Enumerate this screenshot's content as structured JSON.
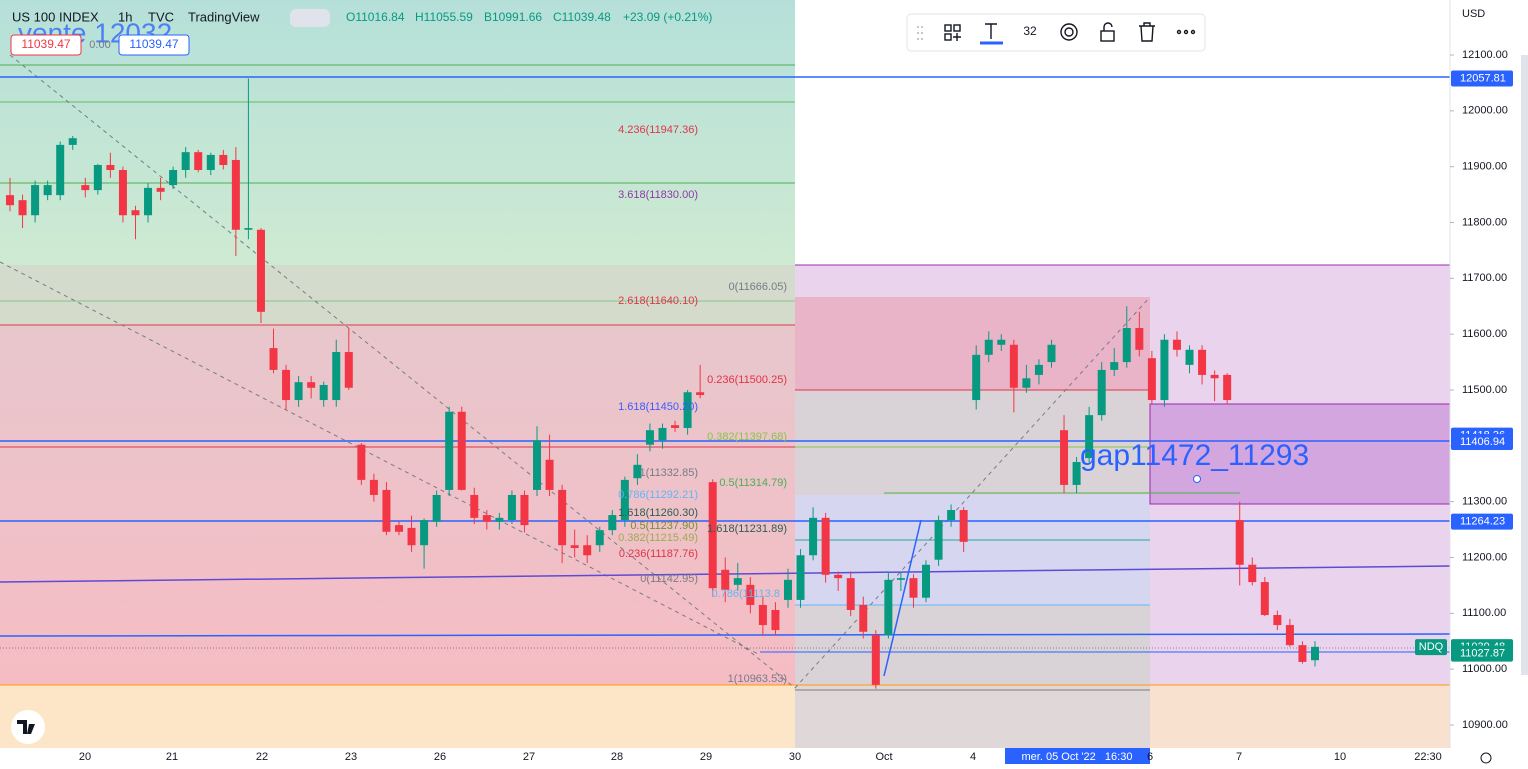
{
  "header": {
    "symbol": "US 100 INDEX",
    "interval": "1h",
    "source": "TVC",
    "platform": "TradingView",
    "open": "O11016.84",
    "high": "H11055.59",
    "low": "B10991.66",
    "close": "C11039.48",
    "change": "+23.09 (+0.21%)",
    "bid": "11039.47",
    "spread": "0.00",
    "ask": "11039.47",
    "watermark": "vente 12032"
  },
  "toolbar": {
    "size": "32"
  },
  "chart_data": {
    "type": "candlestick",
    "ylim": [
      10858.8,
      12198.5
    ],
    "currency": "USD",
    "up_color": "#089981",
    "down_color": "#f23645",
    "yticks": [
      {
        "value": 12100,
        "label": "12100.00"
      },
      {
        "value": 12000,
        "label": "12000.00"
      },
      {
        "value": 11900,
        "label": "11900.00"
      },
      {
        "value": 11800,
        "label": "11800.00"
      },
      {
        "value": 11700,
        "label": "11700.00"
      },
      {
        "value": 11600,
        "label": "11600.00"
      },
      {
        "value": 11500,
        "label": "11500.00"
      },
      {
        "value": 11400,
        "label": "11400.00"
      },
      {
        "value": 11300,
        "label": "11300.00"
      },
      {
        "value": 11200,
        "label": "11200.00"
      },
      {
        "value": 11100,
        "label": "11100.00"
      },
      {
        "value": 11000,
        "label": "11000.00"
      },
      {
        "value": 10900,
        "label": "10900.00"
      }
    ],
    "price_tags": [
      {
        "value": 12057.81,
        "label": "12057.81",
        "color": "#2962ff"
      },
      {
        "value": 11418.36,
        "label": "11418.36",
        "color": "#2962ff"
      },
      {
        "value": 11406.94,
        "label": "11406.94",
        "color": "#2962ff"
      },
      {
        "value": 11264.23,
        "label": "11264.23",
        "color": "#2962ff"
      },
      {
        "value": 11039.48,
        "label": "11039.48",
        "color": "#089981"
      },
      {
        "value": 11027.87,
        "label": "11027.87",
        "color": "#089981"
      }
    ],
    "symbol_tag": "NDQ",
    "time_labels": [
      "20",
      "21",
      "22",
      "23",
      "26",
      "27",
      "28",
      "29",
      "30",
      "Oct",
      "4",
      "mer. 05 Oct '22   16:30",
      "6",
      "7",
      "10",
      "22:30"
    ],
    "fib_labels": [
      {
        "text": "4.236(11947.36)",
        "color": "#e0344a"
      },
      {
        "text": "3.618(11830.00)",
        "color": "#8e3aa8"
      },
      {
        "text": "2.618(11640.10)",
        "color": "#e0344a"
      },
      {
        "text": "0(11666.05)",
        "color": "#787b86"
      },
      {
        "text": "0.236(11500.25)",
        "color": "#e0344a"
      },
      {
        "text": "1.618(11450.20)",
        "color": "#3d5afe"
      },
      {
        "text": "0.382(11397.68)",
        "color": "#8bc34a"
      },
      {
        "text": "1(11332.85)",
        "color": "#787b86"
      },
      {
        "text": "0.5(11314.79)",
        "color": "#4caf50"
      },
      {
        "text": "0.786(11292.21)",
        "color": "#64b5f6"
      },
      {
        "text": "1.618(11260.30)",
        "color": "#2e5e4e"
      },
      {
        "text": "0.5(11237.90)",
        "color": "#7a8f2a"
      },
      {
        "text": "1.618(11231.89)",
        "color": "#2e5e4e"
      },
      {
        "text": "0.382(11215.49)",
        "color": "#9cad4e"
      },
      {
        "text": "0.236(11187.76)",
        "color": "#e0344a"
      },
      {
        "text": "0(11142.95)",
        "color": "#787b86"
      },
      {
        "text": "0.786(11113.8",
        "color": "#64b5f6"
      },
      {
        "text": "1(10963.53)",
        "color": "#787b86"
      }
    ],
    "gap_label": "gap11472_11293",
    "candles": [
      [
        11849,
        11880,
        11820,
        11831
      ],
      [
        11840,
        11850,
        11790,
        11813
      ],
      [
        11813,
        11875,
        11800,
        11867
      ],
      [
        11849,
        11875,
        11840,
        11867
      ],
      [
        11849,
        11945,
        11840,
        11939
      ],
      [
        11939,
        11955,
        11930,
        11951
      ],
      [
        11867,
        11880,
        11845,
        11858
      ],
      [
        11858,
        11905,
        11850,
        11903
      ],
      [
        11903,
        11925,
        11880,
        11894
      ],
      [
        11894,
        11900,
        11800,
        11813
      ],
      [
        11822,
        11830,
        11770,
        11813
      ],
      [
        11813,
        11870,
        11800,
        11862
      ],
      [
        11862,
        11880,
        11840,
        11855
      ],
      [
        11867,
        11900,
        11860,
        11894
      ],
      [
        11894,
        11935,
        11880,
        11926
      ],
      [
        11926,
        11930,
        11890,
        11894
      ],
      [
        11894,
        11925,
        11885,
        11921
      ],
      [
        11921,
        11930,
        11895,
        11903
      ],
      [
        11912,
        11935,
        11740,
        11787
      ],
      [
        11787,
        12058,
        11770,
        11790
      ],
      [
        11787,
        11790,
        11620,
        11640
      ],
      [
        11575,
        11610,
        11530,
        11536
      ],
      [
        11536,
        11545,
        11465,
        11482
      ],
      [
        11482,
        11525,
        11470,
        11514
      ],
      [
        11514,
        11525,
        11485,
        11504
      ],
      [
        11482,
        11515,
        11470,
        11509
      ],
      [
        11482,
        11590,
        11470,
        11568
      ],
      [
        11568,
        11610,
        11500,
        11504
      ],
      [
        11402,
        11405,
        11330,
        11339
      ],
      [
        11339,
        11350,
        11300,
        11312
      ],
      [
        11321,
        11335,
        11240,
        11246
      ],
      [
        11258,
        11265,
        11240,
        11246
      ],
      [
        11253,
        11275,
        11210,
        11222
      ],
      [
        11222,
        11270,
        11180,
        11267
      ],
      [
        11264,
        11320,
        11255,
        11312
      ],
      [
        11321,
        11470,
        11310,
        11461
      ],
      [
        11461,
        11470,
        11320,
        11321
      ],
      [
        11312,
        11325,
        11260,
        11271
      ],
      [
        11276,
        11285,
        11250,
        11264
      ],
      [
        11264,
        11280,
        11250,
        11271
      ],
      [
        11267,
        11320,
        11260,
        11312
      ],
      [
        11312,
        11320,
        11245,
        11258
      ],
      [
        11321,
        11435,
        11310,
        11410
      ],
      [
        11375,
        11420,
        11310,
        11321
      ],
      [
        11321,
        11330,
        11190,
        11222
      ],
      [
        11222,
        11250,
        11200,
        11217
      ],
      [
        11222,
        11240,
        11190,
        11204
      ],
      [
        11222,
        11255,
        11210,
        11249
      ],
      [
        11249,
        11285,
        11240,
        11276
      ],
      [
        11267,
        11345,
        11255,
        11339
      ],
      [
        11342,
        11385,
        11330,
        11366
      ],
      [
        11402,
        11440,
        11390,
        11428
      ],
      [
        11410,
        11440,
        11395,
        11432
      ],
      [
        11437,
        11445,
        11425,
        11432
      ],
      [
        11432,
        11500,
        11420,
        11496
      ],
      [
        11496,
        11545,
        11485,
        11491
      ],
      [
        11335,
        11340,
        11130,
        11145
      ],
      [
        11178,
        11200,
        11120,
        11142
      ],
      [
        11151,
        11190,
        11140,
        11163
      ],
      [
        11151,
        11165,
        11100,
        11115
      ],
      [
        11115,
        11130,
        11060,
        11079
      ],
      [
        11106,
        11120,
        11060,
        11070
      ],
      [
        11124,
        11180,
        11110,
        11160
      ],
      [
        11124,
        11215,
        11110,
        11204
      ],
      [
        11204,
        11290,
        11195,
        11271
      ],
      [
        11271,
        11280,
        11155,
        11169
      ],
      [
        11169,
        11175,
        11140,
        11163
      ],
      [
        11163,
        11175,
        11095,
        11106
      ],
      [
        11115,
        11130,
        11055,
        11067
      ],
      [
        11061,
        11070,
        10965,
        10972
      ],
      [
        11061,
        11175,
        11055,
        11160
      ],
      [
        11160,
        11175,
        11140,
        11163
      ],
      [
        11163,
        11170,
        11110,
        11128
      ],
      [
        11128,
        11195,
        11120,
        11187
      ],
      [
        11196,
        11275,
        11185,
        11267
      ],
      [
        11267,
        11295,
        11255,
        11285
      ],
      [
        11285,
        11290,
        11210,
        11228
      ],
      [
        11482,
        11580,
        11465,
        11563
      ],
      [
        11563,
        11605,
        11550,
        11590
      ],
      [
        11581,
        11600,
        11570,
        11590
      ],
      [
        11581,
        11590,
        11460,
        11504
      ],
      [
        11504,
        11545,
        11495,
        11521
      ],
      [
        11527,
        11555,
        11510,
        11545
      ],
      [
        11550,
        11590,
        11540,
        11581
      ],
      [
        11428,
        11455,
        11315,
        11330
      ],
      [
        11330,
        11380,
        11315,
        11371
      ],
      [
        11378,
        11470,
        11370,
        11455
      ],
      [
        11455,
        11550,
        11445,
        11536
      ],
      [
        11536,
        11575,
        11525,
        11550
      ],
      [
        11550,
        11650,
        11540,
        11611
      ],
      [
        11611,
        11640,
        11560,
        11572
      ],
      [
        11557,
        11570,
        11475,
        11482
      ],
      [
        11482,
        11600,
        11470,
        11590
      ],
      [
        11590,
        11605,
        11560,
        11572
      ],
      [
        11545,
        11580,
        11530,
        11572
      ],
      [
        11572,
        11580,
        11510,
        11527
      ],
      [
        11527,
        11535,
        11480,
        11521
      ],
      [
        11527,
        11530,
        11475,
        11482
      ],
      [
        11267,
        11300,
        11150,
        11187
      ],
      [
        11187,
        11200,
        11150,
        11156
      ],
      [
        11156,
        11165,
        11095,
        11097
      ],
      [
        11097,
        11105,
        11070,
        11079
      ],
      [
        11079,
        11090,
        11040,
        11043
      ],
      [
        11043,
        11050,
        11010,
        11013
      ],
      [
        11016,
        11050,
        11005,
        11040
      ]
    ]
  }
}
